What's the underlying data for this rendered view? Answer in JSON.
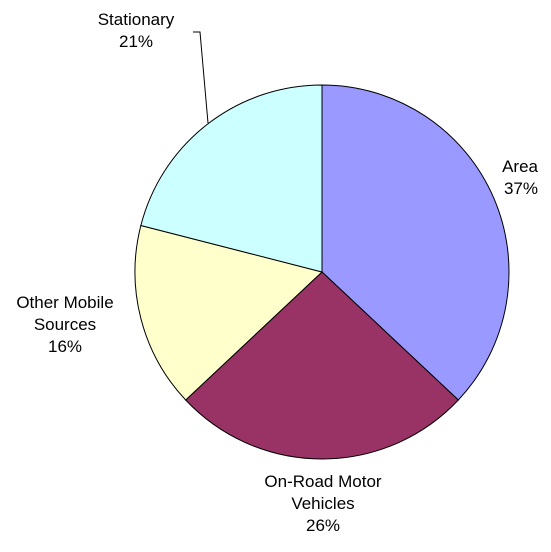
{
  "chart_data": {
    "type": "pie",
    "title": "",
    "legend": "none",
    "slices": [
      {
        "label": "Area",
        "value": 37,
        "pct_label": "37%",
        "color": "#9999ff"
      },
      {
        "label": "On-Road Motor Vehicles",
        "value": 26,
        "pct_label": "26%",
        "color": "#993366"
      },
      {
        "label": "Other Mobile Sources",
        "value": 16,
        "pct_label": "16%",
        "color": "#ffffcc"
      },
      {
        "label": "Stationary",
        "value": 21,
        "pct_label": "21%",
        "color": "#ccffff"
      }
    ]
  }
}
